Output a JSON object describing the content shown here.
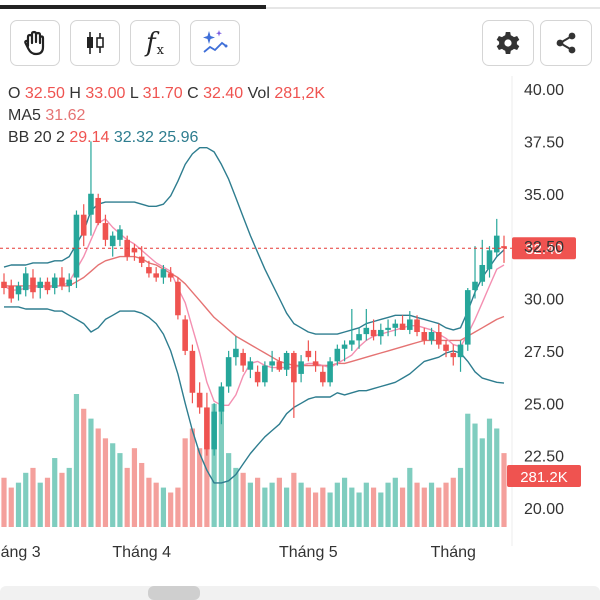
{
  "toolbar": {
    "left_buttons": [
      "hand-icon",
      "candlestick-icon",
      "function-icon",
      "sparkle-chart-icon"
    ],
    "function_label": "f",
    "function_sub": "x",
    "right_buttons": [
      "gear-icon",
      "share-icon"
    ]
  },
  "legend": {
    "ohlc": [
      {
        "k": "O",
        "v": "32.50"
      },
      {
        "k": "H",
        "v": "33.00"
      },
      {
        "k": "L",
        "v": "31.70"
      },
      {
        "k": "C",
        "v": "32.40"
      },
      {
        "k": "Vol",
        "v": "281,2K"
      }
    ],
    "ma": {
      "k": "MA5",
      "v": "31.62"
    },
    "bb": {
      "k": "BB 20 2",
      "v1": "29.14",
      "v2": "32.32",
      "v3": "25.96"
    }
  },
  "colors": {
    "up": "#26a69a",
    "down": "#ef5350",
    "ma": "#f48fb1",
    "bb_mid": "#e57373",
    "bb_band": "#2e7d8f"
  },
  "chart_data": {
    "type": "candlestick",
    "y_ticks": [
      "40.00",
      "37.50",
      "35.00",
      "32.50",
      "30.00",
      "27.50",
      "25.00",
      "22.50",
      "20.00"
    ],
    "ylim": [
      20,
      40
    ],
    "x_labels": [
      "Tháng 3",
      "Tháng 4",
      "Tháng 5",
      "Tháng"
    ],
    "x_label_idx": [
      1,
      19,
      42,
      62
    ],
    "current_price": {
      "value": 32.4,
      "label": "32.40"
    },
    "current_volume": {
      "label": "281.2K"
    },
    "ohlc": [
      [
        30.8,
        31.2,
        30.2,
        30.5
      ],
      [
        30.6,
        30.9,
        29.8,
        30.0
      ],
      [
        30.2,
        30.8,
        29.9,
        30.6
      ],
      [
        30.4,
        31.5,
        30.1,
        31.2
      ],
      [
        31.0,
        31.4,
        30.0,
        30.3
      ],
      [
        30.5,
        31.0,
        30.0,
        30.8
      ],
      [
        30.8,
        31.0,
        30.2,
        30.4
      ],
      [
        30.5,
        31.2,
        30.2,
        31.0
      ],
      [
        31.0,
        31.5,
        30.4,
        30.6
      ],
      [
        30.6,
        31.2,
        30.3,
        30.9
      ],
      [
        31.0,
        34.2,
        30.5,
        34.0
      ],
      [
        34.0,
        34.5,
        32.5,
        33.0
      ],
      [
        34.0,
        37.5,
        33.0,
        35.0
      ],
      [
        34.8,
        35.0,
        33.5,
        33.6
      ],
      [
        33.6,
        34.0,
        32.5,
        32.8
      ],
      [
        32.5,
        33.2,
        32.0,
        33.0
      ],
      [
        32.8,
        33.5,
        32.5,
        33.3
      ],
      [
        32.8,
        33.0,
        31.8,
        32.0
      ],
      [
        32.4,
        32.6,
        31.8,
        32.2
      ],
      [
        32.0,
        32.5,
        31.5,
        31.7
      ],
      [
        31.5,
        31.8,
        31.0,
        31.2
      ],
      [
        31.2,
        31.5,
        30.8,
        31.0
      ],
      [
        31.0,
        31.6,
        30.7,
        31.4
      ],
      [
        31.2,
        31.5,
        30.8,
        31.0
      ],
      [
        30.8,
        31.0,
        29.0,
        29.2
      ],
      [
        29.0,
        29.2,
        27.3,
        27.5
      ],
      [
        27.5,
        27.8,
        25.0,
        25.5
      ],
      [
        25.5,
        26.0,
        24.5,
        24.8
      ],
      [
        24.8,
        25.5,
        22.5,
        22.8
      ],
      [
        22.8,
        25.0,
        22.5,
        24.6
      ],
      [
        24.6,
        26.0,
        24.0,
        25.8
      ],
      [
        25.8,
        27.5,
        25.5,
        27.2
      ],
      [
        27.2,
        28.2,
        26.8,
        27.6
      ],
      [
        27.4,
        27.6,
        26.5,
        26.8
      ],
      [
        26.6,
        27.2,
        26.2,
        27.0
      ],
      [
        26.5,
        26.8,
        25.8,
        26.0
      ],
      [
        26.0,
        27.0,
        25.8,
        26.8
      ],
      [
        26.8,
        27.5,
        26.5,
        27.0
      ],
      [
        27.0,
        27.2,
        26.5,
        26.6
      ],
      [
        26.6,
        27.5,
        26.3,
        27.4
      ],
      [
        27.4,
        27.5,
        24.3,
        26.0
      ],
      [
        26.4,
        27.3,
        26.0,
        27.0
      ],
      [
        27.5,
        28.0,
        27.0,
        27.2
      ],
      [
        27.0,
        27.5,
        26.5,
        26.8
      ],
      [
        26.5,
        26.8,
        25.8,
        26.0
      ],
      [
        26.0,
        27.2,
        25.8,
        27.0
      ],
      [
        27.0,
        27.8,
        26.8,
        27.6
      ],
      [
        27.6,
        28.0,
        27.0,
        27.8
      ],
      [
        27.8,
        29.5,
        27.5,
        28.0
      ],
      [
        28.0,
        28.6,
        27.6,
        28.3
      ],
      [
        28.3,
        29.5,
        28.0,
        28.6
      ],
      [
        28.5,
        29.0,
        28.0,
        28.2
      ],
      [
        28.2,
        28.8,
        27.8,
        28.5
      ],
      [
        28.5,
        29.0,
        28.2,
        28.6
      ],
      [
        28.6,
        29.0,
        28.2,
        28.8
      ],
      [
        28.8,
        29.2,
        28.5,
        28.5
      ],
      [
        28.5,
        29.4,
        28.3,
        29.0
      ],
      [
        29.0,
        29.2,
        28.2,
        28.4
      ],
      [
        28.4,
        28.6,
        27.8,
        28.0
      ],
      [
        28.0,
        28.6,
        27.8,
        28.4
      ],
      [
        28.4,
        28.8,
        27.6,
        27.8
      ],
      [
        27.8,
        28.0,
        27.2,
        27.5
      ],
      [
        27.4,
        27.8,
        26.8,
        27.2
      ],
      [
        27.2,
        28.0,
        26.5,
        27.8
      ],
      [
        27.8,
        30.5,
        27.5,
        30.4
      ],
      [
        30.4,
        32.5,
        30.0,
        30.8
      ],
      [
        30.8,
        32.8,
        30.6,
        31.6
      ],
      [
        31.4,
        32.5,
        31.0,
        32.3
      ],
      [
        32.2,
        33.8,
        32.0,
        33.0
      ],
      [
        32.5,
        33.0,
        31.7,
        32.4
      ]
    ],
    "volume": [
      10,
      8,
      9,
      11,
      12,
      9,
      10,
      14,
      11,
      12,
      27,
      24,
      22,
      20,
      18,
      17,
      15,
      12,
      16,
      13,
      10,
      9,
      8,
      7,
      8,
      18,
      20,
      16,
      24,
      25,
      24,
      15,
      12,
      11,
      9,
      10,
      8,
      9,
      10,
      8,
      11,
      9,
      8,
      7,
      8,
      7,
      9,
      10,
      8,
      7,
      9,
      8,
      7,
      9,
      10,
      8,
      12,
      9,
      8,
      9,
      8,
      9,
      10,
      12,
      23,
      21,
      18,
      22,
      20,
      15
    ],
    "ma5": [
      30.6,
      30.4,
      30.4,
      30.5,
      30.5,
      30.6,
      30.5,
      30.6,
      30.6,
      30.8,
      31.4,
      32.0,
      32.8,
      33.6,
      33.8,
      33.4,
      33.1,
      32.8,
      32.6,
      32.3,
      32.0,
      31.7,
      31.5,
      31.3,
      30.5,
      29.8,
      28.6,
      27.4,
      26.0,
      25.1,
      24.9,
      24.9,
      25.4,
      26.3,
      26.9,
      27.0,
      26.8,
      26.7,
      26.7,
      26.7,
      26.7,
      26.8,
      26.9,
      26.9,
      26.8,
      26.7,
      26.9,
      27.1,
      27.3,
      27.7,
      28.0,
      28.2,
      28.3,
      28.4,
      28.5,
      28.6,
      28.7,
      28.7,
      28.6,
      28.5,
      28.3,
      28.1,
      27.8,
      27.7,
      28.3,
      29.0,
      29.8,
      30.6,
      31.4,
      31.6
    ],
    "bb_mid": [
      30.6,
      30.6,
      30.6,
      30.6,
      30.6,
      30.6,
      30.6,
      30.6,
      30.6,
      30.6,
      30.8,
      31.0,
      31.3,
      31.6,
      31.8,
      31.9,
      32.0,
      32.0,
      32.0,
      31.9,
      31.7,
      31.6,
      31.4,
      31.2,
      31.0,
      30.7,
      30.3,
      29.9,
      29.5,
      29.1,
      28.8,
      28.5,
      28.2,
      28.0,
      27.8,
      27.6,
      27.4,
      27.2,
      27.0,
      26.9,
      26.8,
      26.8,
      26.8,
      26.8,
      26.8,
      26.8,
      26.9,
      26.9,
      27.0,
      27.1,
      27.2,
      27.3,
      27.4,
      27.5,
      27.6,
      27.7,
      27.8,
      27.9,
      28.0,
      28.0,
      28.0,
      28.0,
      28.0,
      28.0,
      28.2,
      28.4,
      28.6,
      28.8,
      29.0,
      29.14
    ],
    "bb_upper": [
      31.5,
      31.6,
      31.6,
      31.6,
      31.7,
      31.7,
      31.7,
      31.8,
      31.8,
      32.0,
      32.6,
      33.2,
      34.2,
      34.5,
      34.6,
      34.6,
      34.6,
      34.6,
      34.6,
      34.5,
      34.4,
      34.4,
      34.5,
      34.9,
      35.6,
      36.4,
      36.9,
      37.2,
      37.2,
      37.0,
      36.4,
      35.7,
      34.8,
      33.9,
      33.0,
      32.2,
      31.4,
      30.7,
      30.0,
      29.3,
      28.8,
      28.6,
      28.4,
      28.3,
      28.3,
      28.3,
      28.3,
      28.4,
      28.5,
      28.6,
      28.8,
      28.9,
      29.0,
      29.1,
      29.2,
      29.2,
      29.2,
      29.1,
      29.0,
      28.9,
      28.8,
      28.6,
      28.5,
      28.6,
      29.4,
      30.3,
      31.0,
      31.5,
      32.0,
      32.32
    ],
    "bb_lower": [
      29.6,
      29.6,
      29.6,
      29.5,
      29.5,
      29.5,
      29.5,
      29.4,
      29.4,
      29.2,
      29.0,
      28.8,
      28.4,
      28.6,
      29.0,
      29.2,
      29.4,
      29.4,
      29.4,
      29.3,
      29.1,
      28.8,
      28.3,
      27.5,
      26.4,
      25.0,
      23.7,
      22.6,
      21.8,
      21.2,
      21.2,
      21.3,
      21.6,
      22.1,
      22.6,
      23.0,
      23.4,
      23.7,
      24.0,
      24.5,
      24.8,
      25.0,
      25.2,
      25.3,
      25.3,
      25.3,
      25.5,
      25.4,
      25.5,
      25.6,
      25.6,
      25.7,
      25.8,
      25.9,
      26.0,
      26.2,
      26.4,
      26.7,
      27.0,
      27.1,
      27.2,
      27.4,
      27.5,
      27.4,
      27.0,
      26.5,
      26.2,
      26.1,
      26.0,
      25.96
    ]
  }
}
